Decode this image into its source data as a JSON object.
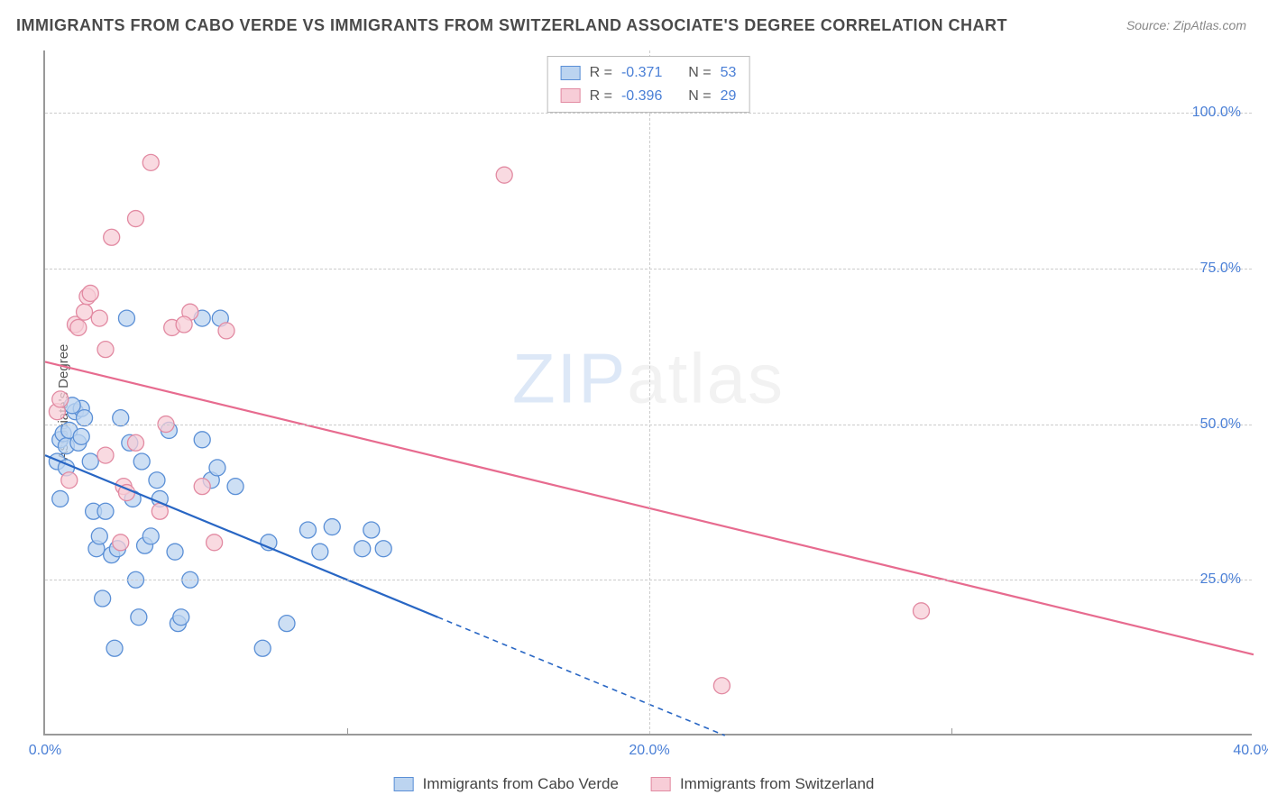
{
  "title": "IMMIGRANTS FROM CABO VERDE VS IMMIGRANTS FROM SWITZERLAND ASSOCIATE'S DEGREE CORRELATION CHART",
  "source": "Source: ZipAtlas.com",
  "y_axis_label": "Associate's Degree",
  "watermark_a": "ZIP",
  "watermark_b": "atlas",
  "chart": {
    "type": "scatter",
    "xlim": [
      0,
      40
    ],
    "ylim": [
      0,
      110
    ],
    "x_ticks": [
      0,
      20,
      40
    ],
    "x_tick_labels": [
      "0.0%",
      "20.0%",
      "40.0%"
    ],
    "y_ticks": [
      25,
      50,
      75,
      100
    ],
    "y_tick_labels": [
      "25.0%",
      "50.0%",
      "75.0%",
      "100.0%"
    ],
    "grid_color": "#cccccc",
    "background_color": "#ffffff",
    "series": [
      {
        "name": "Immigrants from Cabo Verde",
        "R": "-0.371",
        "N": "53",
        "fill": "#bcd4f0",
        "stroke": "#5a8fd6",
        "marker_radius": 9,
        "points": [
          [
            0.5,
            47.5
          ],
          [
            0.6,
            48.5
          ],
          [
            0.7,
            46.5
          ],
          [
            0.8,
            49
          ],
          [
            1.1,
            47
          ],
          [
            1.0,
            52
          ],
          [
            1.2,
            52.5
          ],
          [
            1.3,
            51
          ],
          [
            0.4,
            44
          ],
          [
            0.5,
            38
          ],
          [
            0.7,
            43
          ],
          [
            1.2,
            48
          ],
          [
            1.6,
            36
          ],
          [
            1.7,
            30
          ],
          [
            1.8,
            32
          ],
          [
            1.9,
            22
          ],
          [
            2.2,
            29
          ],
          [
            2.3,
            14
          ],
          [
            2.4,
            30
          ],
          [
            2.5,
            51
          ],
          [
            2.7,
            67
          ],
          [
            2.8,
            47
          ],
          [
            2.9,
            38
          ],
          [
            3.0,
            25
          ],
          [
            3.1,
            19
          ],
          [
            3.2,
            44
          ],
          [
            3.7,
            41
          ],
          [
            3.8,
            38
          ],
          [
            4.1,
            49
          ],
          [
            4.3,
            29.5
          ],
          [
            4.4,
            18
          ],
          [
            5.2,
            67
          ],
          [
            5.2,
            47.5
          ],
          [
            5.5,
            41
          ],
          [
            5.7,
            43
          ],
          [
            5.8,
            67
          ],
          [
            6.3,
            40
          ],
          [
            7.2,
            14
          ],
          [
            7.4,
            31
          ],
          [
            8.0,
            18
          ],
          [
            8.7,
            33
          ],
          [
            9.1,
            29.5
          ],
          [
            9.5,
            33.5
          ],
          [
            10.5,
            30
          ],
          [
            10.8,
            33
          ],
          [
            11.2,
            30
          ],
          [
            4.8,
            25
          ],
          [
            3.3,
            30.5
          ],
          [
            3.5,
            32
          ],
          [
            4.5,
            19
          ],
          [
            2.0,
            36
          ],
          [
            0.9,
            53
          ],
          [
            1.5,
            44
          ]
        ],
        "trend": {
          "x1": 0,
          "y1": 45,
          "x2": 13,
          "y2": 19,
          "solid_end_x": 13,
          "dash_to_x": 22.5,
          "dash_to_y": 0,
          "color": "#2866c4",
          "width": 2.2
        }
      },
      {
        "name": "Immigrants from Switzerland",
        "R": "-0.396",
        "N": "29",
        "fill": "#f7cdd7",
        "stroke": "#e28aa2",
        "marker_radius": 9,
        "points": [
          [
            0.4,
            52
          ],
          [
            0.5,
            54
          ],
          [
            0.8,
            41
          ],
          [
            1.0,
            66
          ],
          [
            1.1,
            65.5
          ],
          [
            1.3,
            68
          ],
          [
            1.4,
            70.5
          ],
          [
            1.5,
            71
          ],
          [
            1.8,
            67
          ],
          [
            2.0,
            62
          ],
          [
            2.2,
            80
          ],
          [
            2.0,
            45
          ],
          [
            2.6,
            40
          ],
          [
            3.0,
            47
          ],
          [
            3.0,
            83
          ],
          [
            3.5,
            92
          ],
          [
            3.8,
            36
          ],
          [
            4.0,
            50
          ],
          [
            4.2,
            65.5
          ],
          [
            4.8,
            68
          ],
          [
            4.6,
            66
          ],
          [
            5.2,
            40
          ],
          [
            5.6,
            31
          ],
          [
            6.0,
            65
          ],
          [
            2.5,
            31
          ],
          [
            2.7,
            39
          ],
          [
            15.2,
            90
          ],
          [
            22.4,
            8
          ],
          [
            29,
            20
          ]
        ],
        "trend": {
          "x1": 0,
          "y1": 60,
          "x2": 40,
          "y2": 13,
          "color": "#e76b8f",
          "width": 2.2
        }
      }
    ]
  },
  "legend_top": {
    "label_R": "R =",
    "label_N": "N ="
  },
  "tick_color": "#4a7fd6"
}
